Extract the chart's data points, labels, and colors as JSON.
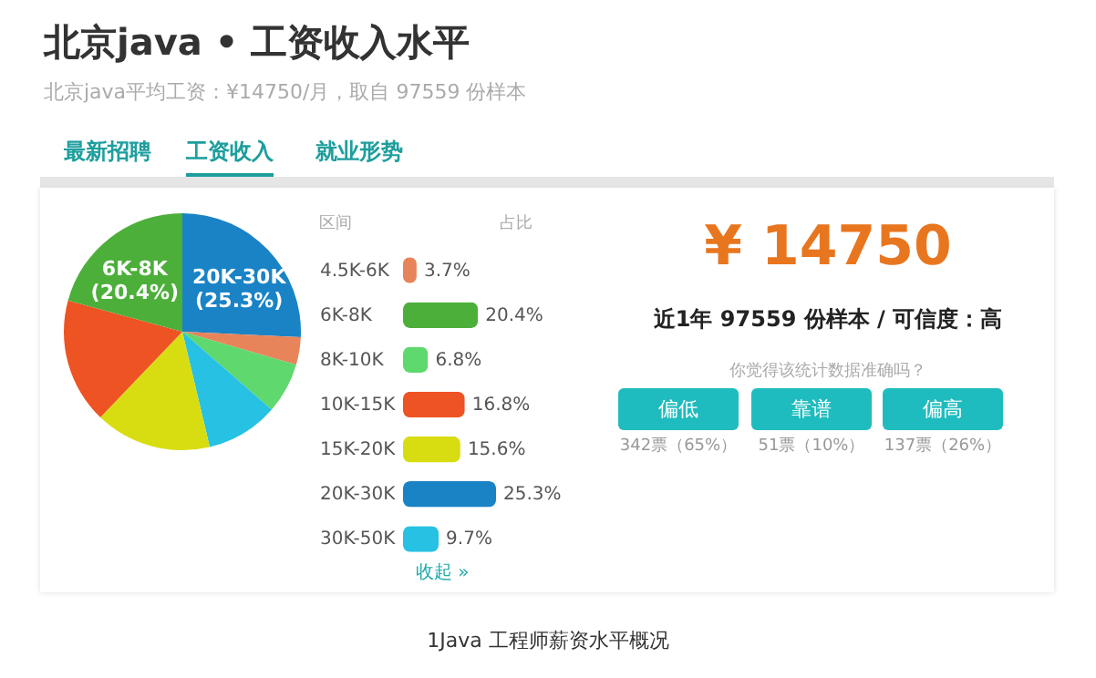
{
  "chart_data": [
    {
      "type": "pie",
      "title": "北京java • 工资收入水平",
      "subtitle": "北京java平均工资：¥14750/月，取自 97559 份样本",
      "categories": [
        "20K-30K",
        null,
        null,
        null,
        null,
        null,
        "6K-8K"
      ],
      "values": [
        25.3,
        3.7,
        6.8,
        9.7,
        15.6,
        16.8,
        20.4
      ],
      "colors": [
        "#1a83c6",
        "#e8845a",
        "#5fd86e",
        "#27c1e3",
        "#d8dd12",
        "#ee5323",
        "#4caf3a"
      ],
      "value_labels": [
        "(25.3%)",
        null,
        null,
        null,
        null,
        null,
        "(20.4%)"
      ],
      "annotations": [
        "最新招聘",
        "工资收入",
        "就业形势",
        "1Java 工程师薪资水平概况"
      ]
    },
    {
      "type": "bar",
      "orientation": "horizontal",
      "categories": [
        "4.5K-6K",
        "6K-8K",
        "8K-10K",
        "10K-15K",
        "15K-20K",
        "20K-30K",
        "30K-50K"
      ],
      "values": [
        3.7,
        20.4,
        6.8,
        16.8,
        15.6,
        25.3,
        9.7
      ],
      "colors": [
        "#e8845a",
        "#4caf3a",
        "#5fd86e",
        "#ee5323",
        "#d8dd12",
        "#1a83c6",
        "#27c1e3"
      ],
      "value_labels": [
        "3.7%",
        "20.4%",
        "6.8%",
        "16.8%",
        "15.6%",
        "25.3%",
        "9.7%"
      ],
      "annotations": [
        "区间",
        "占比",
        "收起 »"
      ]
    },
    {
      "type": "other",
      "title": "¥ 14750",
      "annotations": [
        "近1年 97559 份样本 / 可信度：高",
        "你觉得该统计数据准确吗？",
        "偏低",
        "靠谱",
        "偏高",
        "342票（65%）",
        "51票（10%）",
        "137票（26%）"
      ]
    }
  ]
}
